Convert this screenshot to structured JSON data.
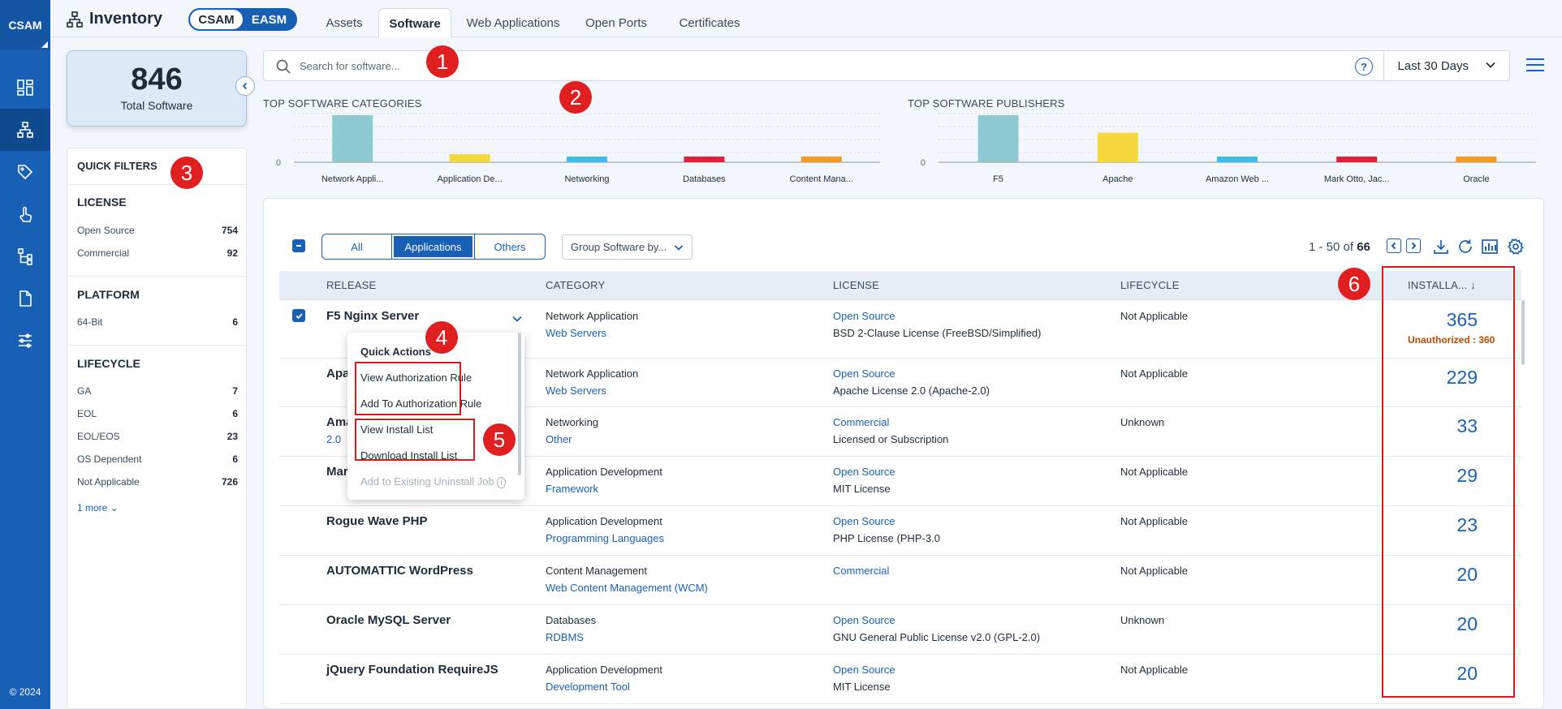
{
  "nav": {
    "brand": "CSAM",
    "copyright": "© 2024",
    "icons": [
      "dashboard-icon",
      "inventory-icon",
      "tag-icon",
      "touch-icon",
      "hierarchy-icon",
      "document-icon",
      "sliders-icon"
    ]
  },
  "header": {
    "title": "Inventory",
    "toggle": [
      "CSAM",
      "EASM"
    ],
    "tabs": [
      "Assets",
      "Software",
      "Web Applications",
      "Open Ports",
      "Certificates"
    ],
    "active_tab": "Software"
  },
  "summary": {
    "total": "846",
    "label": "Total Software"
  },
  "quick_filters": {
    "title": "QUICK FILTERS",
    "sections": [
      {
        "title": "LICENSE",
        "items": [
          {
            "label": "Open Source",
            "count": "754"
          },
          {
            "label": "Commercial",
            "count": "92"
          }
        ]
      },
      {
        "title": "PLATFORM",
        "items": [
          {
            "label": "64-Bit",
            "count": "6"
          }
        ]
      },
      {
        "title": "LIFECYCLE",
        "items": [
          {
            "label": "GA",
            "count": "7"
          },
          {
            "label": "EOL",
            "count": "6"
          },
          {
            "label": "EOL/EOS",
            "count": "23"
          },
          {
            "label": "OS Dependent",
            "count": "6"
          },
          {
            "label": "Not Applicable",
            "count": "726"
          }
        ]
      }
    ],
    "more": "1 more"
  },
  "search": {
    "placeholder": "Search for software...",
    "help": "?",
    "range": "Last 30 Days"
  },
  "chart_data": [
    {
      "type": "bar",
      "title": "TOP SOFTWARE CATEGORIES",
      "categories": [
        "Network Appli...",
        "Application De...",
        "Networking",
        "Databases",
        "Content Mana..."
      ],
      "values": [
        365,
        62,
        33,
        30,
        30
      ],
      "colors": [
        "#8ecad4",
        "#f4d83c",
        "#3cbde8",
        "#e01f3a",
        "#f59a23"
      ],
      "yticks": [
        "0"
      ]
    },
    {
      "type": "bar",
      "title": "TOP SOFTWARE PUBLISHERS",
      "categories": [
        "F5",
        "Apache",
        "Amazon Web ...",
        "Mark Otto, Jac...",
        "Oracle"
      ],
      "values": [
        365,
        229,
        33,
        29,
        30
      ],
      "colors": [
        "#8ecad4",
        "#f4d83c",
        "#3cbde8",
        "#e01f3a",
        "#f59a23"
      ],
      "yticks": [
        "0"
      ]
    }
  ],
  "table_controls": {
    "filters": [
      "All",
      "Applications",
      "Others"
    ],
    "active_filter": "Applications",
    "group_by": "Group Software by...",
    "pager_range": "1 - 50 of",
    "pager_total": "66"
  },
  "columns": [
    "RELEASE",
    "CATEGORY",
    "LICENSE",
    "LIFECYCLE",
    "INSTALLA... ↓"
  ],
  "rows": [
    {
      "release": "F5 Nginx Server",
      "version": "",
      "category": "Network Application",
      "subcategory": "Web Servers",
      "license_type": "Open Source",
      "license": "BSD 2-Clause License (FreeBSD/Simplified)",
      "lifecycle": "Not Applicable",
      "installs": "365",
      "unauthorized": "Unauthorized : 360"
    },
    {
      "release": "Apa",
      "version": "",
      "category": "Network Application",
      "subcategory": "Web Servers",
      "license_type": "Open Source",
      "license": "Apache License 2.0 (Apache-2.0)",
      "lifecycle": "Not Applicable",
      "installs": "229",
      "unauthorized": ""
    },
    {
      "release": "Ama",
      "version": "2.0",
      "category": "Networking",
      "subcategory": "Other",
      "license_type": "Commercial",
      "license": "Licensed or Subscription",
      "lifecycle": "Unknown",
      "installs": "33",
      "unauthorized": ""
    },
    {
      "release": "Mar",
      "version": "",
      "category": "Application Development",
      "subcategory": "Framework",
      "license_type": "Open Source",
      "license": "MIT License",
      "lifecycle": "Not Applicable",
      "installs": "29",
      "unauthorized": ""
    },
    {
      "release": "Rogue Wave PHP",
      "version": "",
      "category": "Application Development",
      "subcategory": "Programming Languages",
      "license_type": "Open Source",
      "license": "PHP License (PHP-3.0",
      "lifecycle": "Not Applicable",
      "installs": "23",
      "unauthorized": ""
    },
    {
      "release": "AUTOMATTIC WordPress",
      "version": "",
      "category": "Content Management",
      "subcategory": "Web Content Management (WCM)",
      "license_type": "Commercial",
      "license": "",
      "lifecycle": "Not Applicable",
      "installs": "20",
      "unauthorized": ""
    },
    {
      "release": "Oracle MySQL Server",
      "version": "",
      "category": "Databases",
      "subcategory": "RDBMS",
      "license_type": "Open Source",
      "license": "GNU General Public License v2.0 (GPL-2.0)",
      "lifecycle": "Unknown",
      "installs": "20",
      "unauthorized": ""
    },
    {
      "release": "jQuery Foundation RequireJS",
      "version": "",
      "category": "Application Development",
      "subcategory": "Development Tool",
      "license_type": "Open Source",
      "license": "MIT License",
      "lifecycle": "Not Applicable",
      "installs": "20",
      "unauthorized": ""
    }
  ],
  "quick_actions": {
    "title": "Quick Actions",
    "items": [
      "View Authorization Rule",
      "Add To Authorization Rule",
      "View Install List",
      "Download Install List",
      "Add to Existing Uninstall Job"
    ]
  },
  "callouts": [
    "1",
    "2",
    "3",
    "4",
    "5",
    "6"
  ]
}
